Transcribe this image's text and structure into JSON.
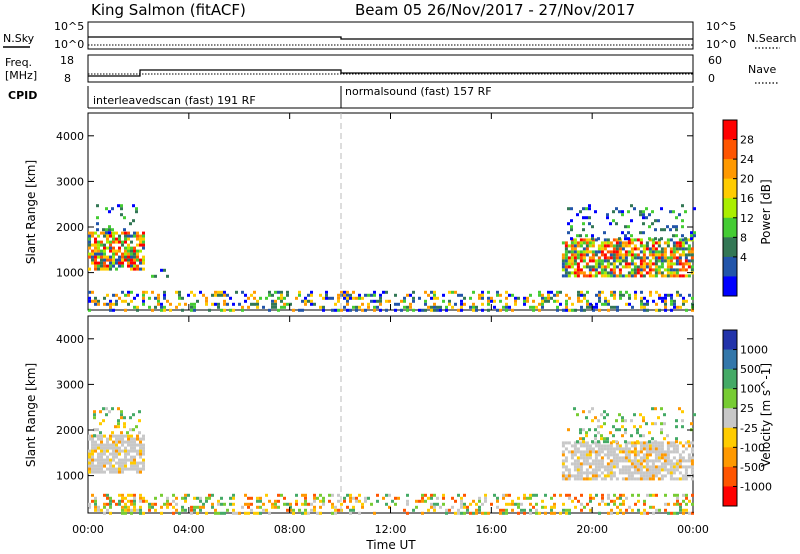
{
  "header": {
    "station": "King Salmon (fitACF)",
    "beam_date": "Beam 05  26/Nov/2017 - 27/Nov/2017"
  },
  "status_panels": {
    "nsky_label": "N.Sky",
    "nsky_ticks": [
      "10^5",
      "10^0"
    ],
    "nsearch_label": "N.Search",
    "nsearch_ticks": [
      "10^5",
      "10^0"
    ],
    "freq_label": "Freq.",
    "freq_unit": "[MHz]",
    "freq_ticks": [
      "18",
      "8"
    ],
    "nave_label": "Nave",
    "nave_ticks": [
      "60",
      "0"
    ],
    "cpid_label": "CPID",
    "cpid_segments": [
      {
        "label": "interleavedscan (fast) 191 RF",
        "start_hour": 0,
        "end_hour": 10
      },
      {
        "label": "normalsound (fast) 157 RF",
        "start_hour": 10,
        "end_hour": 24
      }
    ]
  },
  "axes": {
    "xlabel": "Time UT",
    "x_ticks": [
      "00:00",
      "04:00",
      "08:00",
      "12:00",
      "16:00",
      "20:00",
      "00:00"
    ],
    "ylabel": "Slant Range [km]",
    "y_ticks": [
      "4000",
      "3000",
      "2000",
      "1000"
    ]
  },
  "power_colorbar": {
    "label": "Power [dB]",
    "ticks": [
      "28",
      "24",
      "20",
      "16",
      "12",
      "8",
      "4"
    ],
    "colors": [
      "#ff0000",
      "#ff5500",
      "#ff9900",
      "#ffcc00",
      "#aaee00",
      "#44cc33",
      "#337755",
      "#2255aa",
      "#0000ff"
    ]
  },
  "velocity_colorbar": {
    "label": "Velocity [m s^-1]",
    "ticks": [
      "1000",
      "500",
      "100",
      "25",
      "-25",
      "-100",
      "-500",
      "-1000"
    ],
    "colors": [
      "#2233aa",
      "#3377aa",
      "#44aa66",
      "#77cc33",
      "#c8c8c8",
      "#ffcc00",
      "#ff9900",
      "#ff5500",
      "#ff0000"
    ]
  },
  "chart_data": [
    {
      "type": "heatmap",
      "title": "",
      "xlabel": "",
      "ylabel": "Slant Range [km]",
      "xlim": [
        0,
        24
      ],
      "ylim": [
        180,
        4500
      ],
      "value_label": "Power [dB]",
      "regions": [
        {
          "t0": 0.0,
          "t1": 2.2,
          "r0": 1050,
          "r1": 1900,
          "level": "high"
        },
        {
          "t0": 0.2,
          "t1": 2.0,
          "r0": 1900,
          "r1": 2500,
          "level": "low"
        },
        {
          "t0": 2.5,
          "t1": 3.2,
          "r0": 900,
          "r1": 1150,
          "level": "low"
        },
        {
          "t0": 18.8,
          "t1": 24.0,
          "r0": 950,
          "r1": 1750,
          "level": "high"
        },
        {
          "t0": 19.0,
          "t1": 24.0,
          "r0": 1750,
          "r1": 2500,
          "level": "low"
        },
        {
          "t0": 0.0,
          "t1": 24.0,
          "r0": 200,
          "r1": 600,
          "level": "near"
        }
      ]
    },
    {
      "type": "heatmap",
      "title": "",
      "xlabel": "Time UT",
      "ylabel": "Slant Range [km]",
      "xlim": [
        0,
        24
      ],
      "ylim": [
        180,
        4500
      ],
      "value_label": "Velocity [m s^-1]",
      "regions": [
        {
          "t0": 0.0,
          "t1": 2.2,
          "r0": 1050,
          "r1": 1900,
          "level": "ground"
        },
        {
          "t0": 0.2,
          "t1": 2.0,
          "r0": 1900,
          "r1": 2500,
          "level": "low"
        },
        {
          "t0": 18.8,
          "t1": 24.0,
          "r0": 950,
          "r1": 1750,
          "level": "ground"
        },
        {
          "t0": 19.0,
          "t1": 24.0,
          "r0": 1750,
          "r1": 2500,
          "level": "low"
        },
        {
          "t0": 0.0,
          "t1": 24.0,
          "r0": 200,
          "r1": 600,
          "level": "near"
        }
      ]
    }
  ]
}
